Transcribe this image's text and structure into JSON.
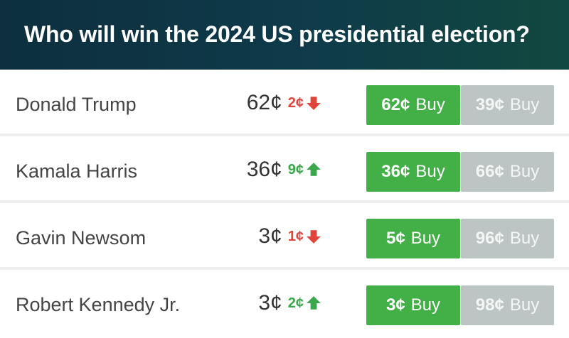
{
  "header": {
    "title": "Who will win the 2024 US presidential election?"
  },
  "colors": {
    "up": "#3aa84a",
    "down": "#e0443a",
    "yes_button": "#43b047",
    "no_button": "#bcc5c3"
  },
  "rows": [
    {
      "name": "Donald Trump",
      "price": "62¢",
      "change": "2¢",
      "direction": "down",
      "yes_price": "62¢",
      "yes_label": "Buy",
      "no_price": "39¢",
      "no_label": "Buy"
    },
    {
      "name": "Kamala Harris",
      "price": "36¢",
      "change": "9¢",
      "direction": "up",
      "yes_price": "36¢",
      "yes_label": "Buy",
      "no_price": "66¢",
      "no_label": "Buy"
    },
    {
      "name": "Gavin Newsom",
      "price": "3¢",
      "change": "1¢",
      "direction": "down",
      "yes_price": "5¢",
      "yes_label": "Buy",
      "no_price": "96¢",
      "no_label": "Buy"
    },
    {
      "name": "Robert Kennedy Jr.",
      "price": "3¢",
      "change": "2¢",
      "direction": "up",
      "yes_price": "3¢",
      "yes_label": "Buy",
      "no_price": "98¢",
      "no_label": "Buy"
    }
  ]
}
